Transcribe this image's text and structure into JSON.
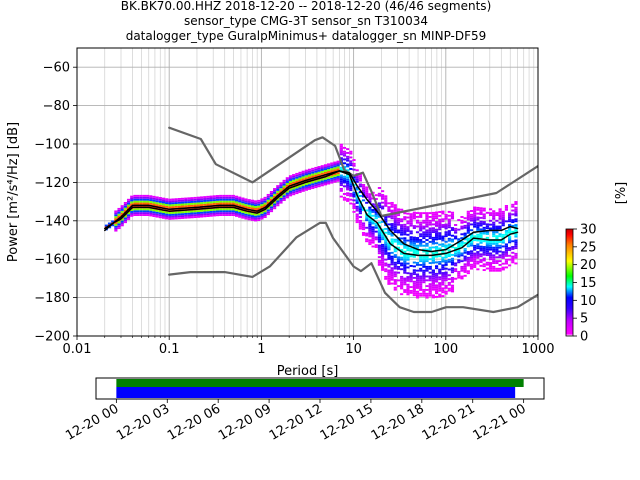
{
  "chart_data": [
    {
      "type": "heatmap",
      "title_lines": [
        "BK.BK70.00.HHZ   2018-12-20 -- 2018-12-20  (46/46 segments)",
        "sensor_type CMG-3T sensor_sn T310034",
        "datalogger_type GuralpMinimus+ datalogger_sn MINP-DF59"
      ],
      "xlabel": "Period [s]",
      "ylabel": "Power [m²/s⁴/Hz] [dB]",
      "xscale": "log",
      "xlim": [
        0.01,
        1000
      ],
      "ylim": [
        -200,
        -50
      ],
      "x_ticks": [
        0.01,
        0.1,
        1,
        10,
        100,
        1000
      ],
      "x_tick_labels": [
        "0.01",
        "0.1",
        "1",
        "10",
        "100",
        "1000"
      ],
      "y_ticks": [
        -200,
        -180,
        -160,
        -140,
        -120,
        -100,
        -80,
        -60
      ],
      "y_tick_labels": [
        "−200",
        "−180",
        "−160",
        "−140",
        "−120",
        "−100",
        "−80",
        "−60"
      ],
      "grid": true,
      "colorbar": {
        "label": "[%]",
        "range": [
          0,
          30
        ],
        "ticks": [
          0,
          5,
          10,
          15,
          20,
          25,
          30
        ],
        "tick_labels": [
          "0",
          "5",
          "10",
          "15",
          "20",
          "25",
          "30"
        ],
        "colormap": "pqlx"
      },
      "series": [
        {
          "role": "noise-model-upper",
          "color": "#666666",
          "x": [
            0.1,
            0.22,
            0.32,
            0.8,
            3.8,
            4.6,
            6.3,
            7.9,
            10,
            12.6,
            15.4,
            20,
            354,
            1000
          ],
          "y": [
            -91.5,
            -97.4,
            -110.5,
            -120,
            -98,
            -96.5,
            -101,
            -113.5,
            -116.6,
            -114.9,
            -124.1,
            -137.5,
            -125.5,
            -111.5
          ]
        },
        {
          "role": "noise-model-lower",
          "color": "#666666",
          "x": [
            0.1,
            0.17,
            0.4,
            0.8,
            1.24,
            2.4,
            4.3,
            5,
            6,
            10,
            12,
            15.6,
            21.9,
            31.6,
            45,
            70,
            101,
            154,
            328,
            600,
            1000
          ],
          "y": [
            -168,
            -166.7,
            -166.7,
            -169.2,
            -163.7,
            -148.6,
            -141.1,
            -141.1,
            -149,
            -163.8,
            -166.2,
            -162.1,
            -177.5,
            -185,
            -187.5,
            -187.5,
            -185,
            -185,
            -187.5,
            -185,
            -178.5
          ]
        },
        {
          "role": "mode",
          "color": "#000000",
          "x": [
            0.02,
            0.025,
            0.03,
            0.04,
            0.06,
            0.1,
            0.2,
            0.35,
            0.5,
            0.7,
            0.9,
            1.1,
            1.5,
            2,
            3,
            5,
            7,
            9,
            11,
            14,
            18,
            25,
            35,
            50,
            70,
            100,
            150,
            200,
            300,
            400,
            500,
            600
          ],
          "y": [
            -144,
            -141,
            -138,
            -132,
            -132,
            -134,
            -133,
            -132,
            -132,
            -134,
            -135,
            -133,
            -127,
            -122,
            -119,
            -116,
            -114,
            -116,
            -127,
            -137,
            -141,
            -152,
            -157,
            -158,
            -158,
            -157,
            -154,
            -149,
            -150,
            -150,
            -147,
            -146
          ]
        },
        {
          "role": "mean",
          "color": "#000000",
          "x": [
            0.02,
            0.025,
            0.03,
            0.04,
            0.06,
            0.1,
            0.2,
            0.35,
            0.5,
            0.7,
            0.9,
            1.1,
            1.5,
            2,
            3,
            5,
            7,
            9,
            11,
            14,
            18,
            25,
            35,
            50,
            70,
            100,
            150,
            200,
            300,
            400,
            500,
            600
          ],
          "y": [
            -145,
            -141,
            -139,
            -133,
            -133,
            -135,
            -134,
            -133,
            -133,
            -135,
            -136,
            -134,
            -128,
            -123,
            -120,
            -117,
            -114,
            -115,
            -122,
            -129,
            -135,
            -145,
            -152,
            -155,
            -156,
            -155,
            -150,
            -146,
            -145,
            -145,
            -143,
            -144
          ]
        }
      ]
    },
    {
      "type": "bar",
      "role": "data-coverage",
      "x_tick_labels": [
        "12-20 00",
        "12-20 03",
        "12-20 06",
        "12-20 09",
        "12-20 12",
        "12-20 15",
        "12-20 18",
        "12-20 21",
        "12-21 00"
      ],
      "x_ticks_hours": [
        0,
        3,
        6,
        9,
        12,
        15,
        18,
        21,
        24
      ],
      "xlim_hours": [
        -1.2,
        25.2
      ],
      "series": [
        {
          "role": "available",
          "color": "#008000",
          "start_hour": 0,
          "end_hour": 24.0
        },
        {
          "role": "used",
          "color": "#0000ff",
          "start_hour": 0,
          "end_hour": 23.5
        }
      ]
    }
  ]
}
